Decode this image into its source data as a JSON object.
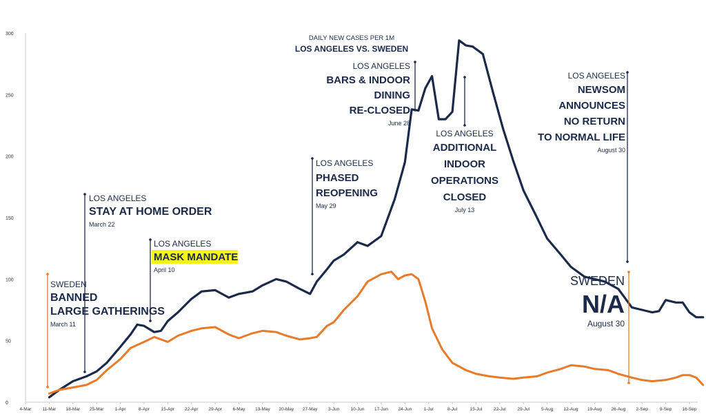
{
  "chart_data": {
    "type": "line",
    "title": "DAILY NEW CASES PER 1M",
    "subtitle": "LOS ANGELES VS. SWEDEN",
    "x_ticks": [
      "4-Mar",
      "11-Mar",
      "18-Mar",
      "25-Mar",
      "1-Apr",
      "8-Apr",
      "15-Apr",
      "22-Apr",
      "29-Apr",
      "6-May",
      "13-May",
      "20-May",
      "27-May",
      "3-Jun",
      "10-Jun",
      "17-Jun",
      "24-Jun",
      "1-Jul",
      "8-Jul",
      "15-Jul",
      "22-Jul",
      "29-Jul",
      "5-Aug",
      "12-Aug",
      "19-Aug",
      "26-Aug",
      "2-Sep",
      "9-Sep",
      "16-Sep"
    ],
    "y_ticks": [
      0,
      50,
      100,
      150,
      200,
      250,
      300
    ],
    "ylim": [
      0,
      300
    ],
    "xlabel": "",
    "ylabel": "",
    "grid": false,
    "series": [
      {
        "color": "#1b2a4a",
        "x": [
          "11-Mar",
          "14-Mar",
          "18-Mar",
          "22-Mar",
          "25-Mar",
          "28-Mar",
          "1-Apr",
          "4-Apr",
          "6-Apr",
          "8-Apr",
          "11-Apr",
          "13-Apr",
          "15-Apr",
          "18-Apr",
          "22-Apr",
          "25-Apr",
          "29-Apr",
          "3-May",
          "6-May",
          "10-May",
          "13-May",
          "17-May",
          "20-May",
          "24-May",
          "27-May",
          "29-May",
          "1-Jun",
          "3-Jun",
          "6-Jun",
          "10-Jun",
          "13-Jun",
          "17-Jun",
          "21-Jun",
          "24-Jun",
          "26-Jun",
          "28-Jun",
          "30-Jun",
          "2-Jul",
          "4-Jul",
          "6-Jul",
          "8-Jul",
          "10-Jul",
          "12-Jul",
          "14-Jul",
          "17-Jul",
          "20-Jul",
          "23-Jul",
          "26-Jul",
          "29-Jul",
          "2-Aug",
          "5-Aug",
          "9-Aug",
          "12-Aug",
          "16-Aug",
          "19-Aug",
          "22-Aug",
          "26-Aug",
          "30-Aug",
          "2-Sep",
          "5-Sep",
          "7-Sep",
          "9-Sep",
          "12-Sep",
          "14-Sep",
          "16-Sep",
          "18-Sep",
          "20-Sep"
        ],
        "values": [
          4,
          10,
          17,
          21,
          25,
          32,
          45,
          55,
          63,
          62,
          57,
          58,
          66,
          73,
          84,
          90,
          91,
          85,
          88,
          90,
          95,
          100,
          98,
          92,
          88,
          98,
          108,
          115,
          120,
          130,
          127,
          135,
          165,
          195,
          238,
          237,
          255,
          265,
          230,
          230,
          236,
          294,
          290,
          289,
          283,
          252,
          222,
          196,
          172,
          150,
          133,
          120,
          110,
          102,
          100,
          98,
          92,
          77,
          75,
          73,
          74,
          83,
          81,
          81,
          73,
          69,
          69
        ]
      },
      {
        "color": "#e87b2a",
        "x": [
          "11-Mar",
          "14-Mar",
          "18-Mar",
          "22-Mar",
          "25-Mar",
          "28-Mar",
          "1-Apr",
          "4-Apr",
          "8-Apr",
          "11-Apr",
          "15-Apr",
          "18-Apr",
          "22-Apr",
          "25-Apr",
          "29-Apr",
          "3-May",
          "6-May",
          "10-May",
          "13-May",
          "17-May",
          "20-May",
          "24-May",
          "27-May",
          "29-May",
          "1-Jun",
          "3-Jun",
          "6-Jun",
          "10-Jun",
          "13-Jun",
          "17-Jun",
          "20-Jun",
          "22-Jun",
          "24-Jun",
          "26-Jun",
          "28-Jun",
          "30-Jun",
          "2-Jul",
          "5-Jul",
          "8-Jul",
          "12-Jul",
          "15-Jul",
          "19-Jul",
          "22-Jul",
          "26-Jul",
          "29-Jul",
          "2-Aug",
          "5-Aug",
          "9-Aug",
          "12-Aug",
          "16-Aug",
          "19-Aug",
          "23-Aug",
          "26-Aug",
          "30-Aug",
          "2-Sep",
          "5-Sep",
          "9-Sep",
          "12-Sep",
          "14-Sep",
          "16-Sep",
          "18-Sep",
          "20-Sep"
        ],
        "values": [
          7,
          10,
          12,
          14,
          18,
          26,
          35,
          44,
          49,
          53,
          49,
          54,
          58,
          60,
          61,
          55,
          52,
          56,
          58,
          57,
          54,
          51,
          52,
          53,
          62,
          65,
          75,
          86,
          98,
          104,
          106,
          100,
          103,
          104,
          100,
          82,
          60,
          43,
          32,
          26,
          23,
          21,
          20,
          19,
          20,
          21,
          24,
          27,
          30,
          29,
          27,
          26,
          23,
          20,
          18,
          17,
          18,
          20,
          22,
          22,
          20,
          14
        ]
      }
    ],
    "annotations": [
      {
        "date": "11-Mar",
        "color": "#e87b2a",
        "pre": "SWEDEN",
        "main": [
          "BANNED",
          "LARGE GATHERINGS"
        ],
        "date_label": "March 11",
        "highlight": false
      },
      {
        "date": "22-Mar",
        "color": "#1b2a4a",
        "pre": "LOS ANGELES",
        "main": [
          "STAY AT HOME ORDER"
        ],
        "date_label": "March 22",
        "highlight": false
      },
      {
        "date": "10-Apr",
        "color": "#1b2a4a",
        "pre": "LOS ANGELES",
        "main": [
          "MASK MANDATE"
        ],
        "date_label": "April 10",
        "highlight": true
      },
      {
        "date": "29-May",
        "color": "#1b2a4a",
        "pre": "LOS ANGELES",
        "main": [
          "PHASED",
          "REOPENING"
        ],
        "date_label": "May 29",
        "highlight": false
      },
      {
        "date": "28-Jun",
        "color": "#1b2a4a",
        "pre": "LOS ANGELES",
        "main": [
          "BARS & INDOOR",
          "DINING",
          "RE-CLOSED"
        ],
        "date_label": "June 28",
        "highlight": false
      },
      {
        "date": "13-Jul",
        "color": "#1b2a4a",
        "pre": "LOS ANGELES",
        "main": [
          "ADDITIONAL",
          "INDOOR",
          "OPERATIONS",
          "CLOSED"
        ],
        "date_label": "July 13",
        "highlight": false
      },
      {
        "date": "30-Aug",
        "color": "#1b2a4a",
        "pre": "LOS ANGELES",
        "main": [
          "NEWSOM",
          "ANNOUNCES",
          "NO RETURN",
          "TO NORMAL LIFE"
        ],
        "date_label": "August 30",
        "highlight": false
      },
      {
        "date": "30-Aug",
        "color": "#e87b2a",
        "pre": "SWEDEN",
        "main": [
          "N/A"
        ],
        "date_label": "August 30",
        "highlight": false
      }
    ],
    "colors": {
      "axis": "#c8c8c8",
      "text": "#1b2a4a",
      "highlight": "#f5f51c"
    }
  }
}
